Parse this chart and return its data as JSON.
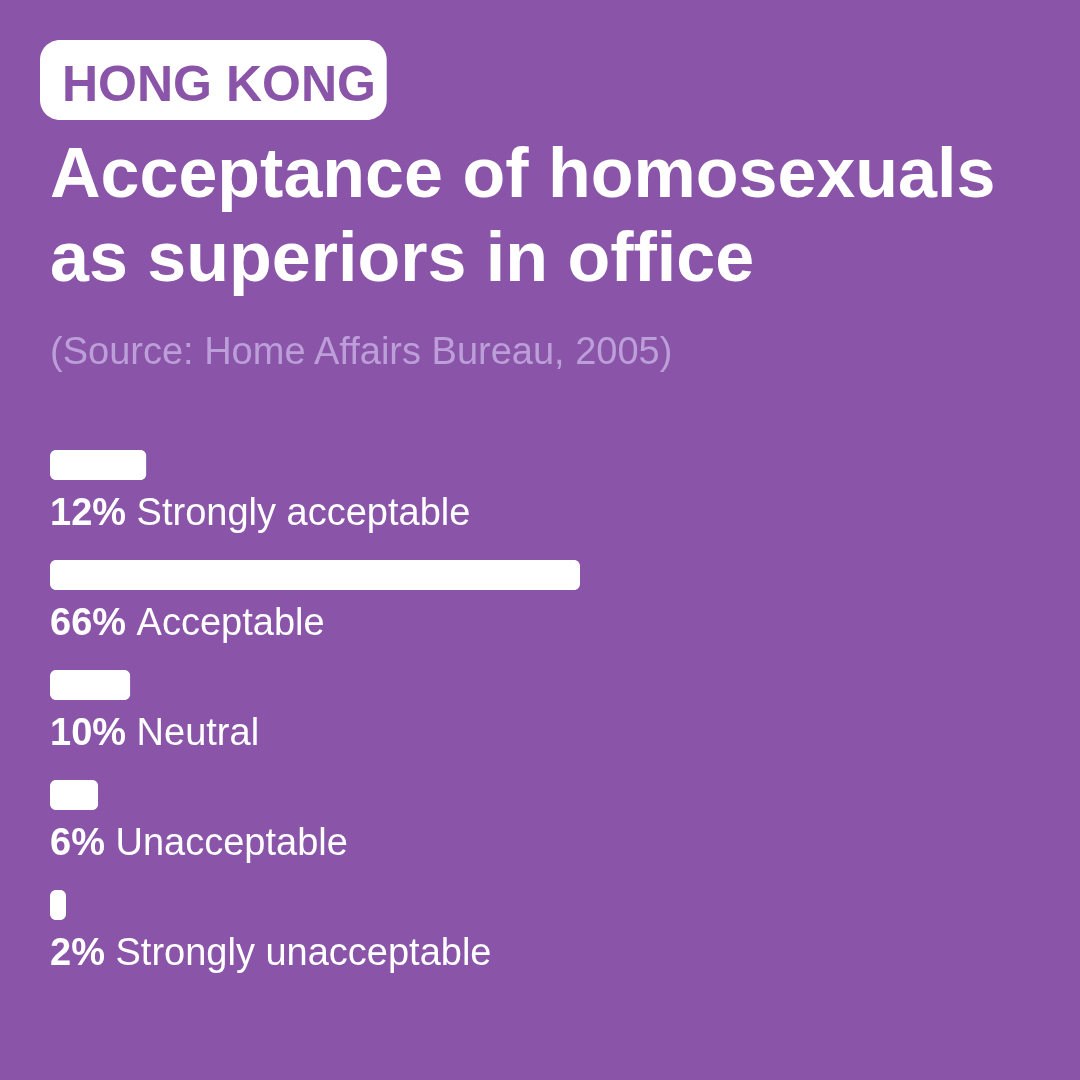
{
  "chart_data": {
    "type": "bar",
    "orientation": "horizontal",
    "title": "Acceptance of homosexuals as superiors in office",
    "annotations": [
      "HONG KONG",
      "(Source: Home Affairs Bureau, 2005)"
    ],
    "categories": [
      "Strongly acceptable",
      "Acceptable",
      "Neutral",
      "Unacceptable",
      "Strongly unacceptable"
    ],
    "values": [
      12,
      66,
      10,
      6,
      2
    ],
    "value_labels": [
      "12%",
      "66%",
      "10%",
      "6%",
      "2%"
    ],
    "color": "#ffffff"
  }
}
